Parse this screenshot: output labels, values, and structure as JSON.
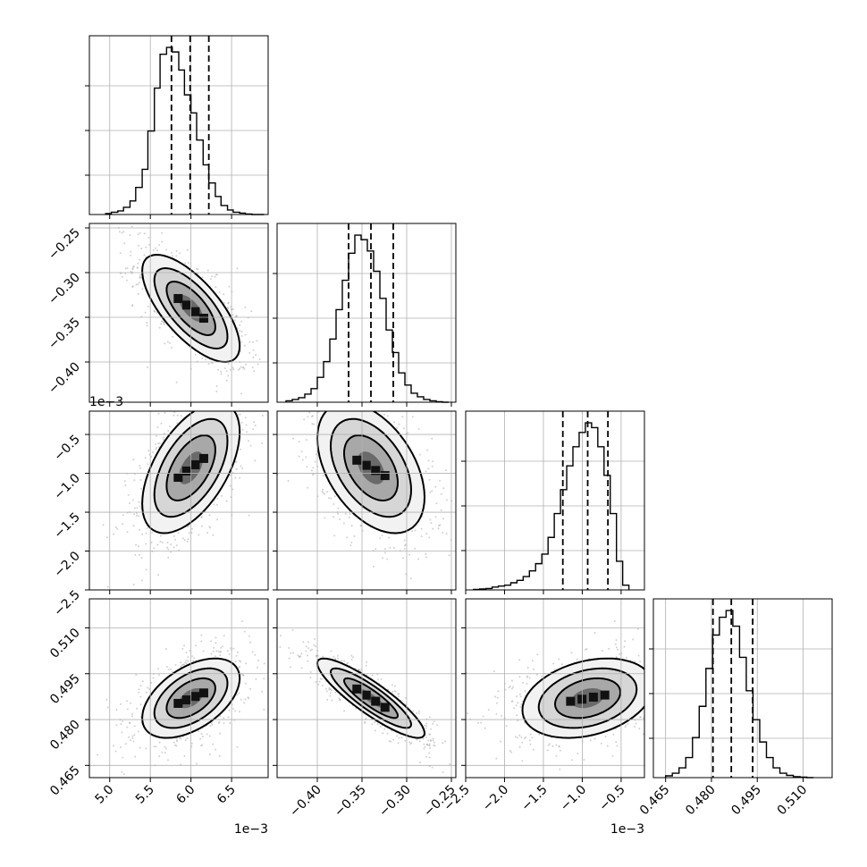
{
  "chart_data": {
    "type": "corner",
    "params": [
      {
        "index": 0,
        "lim": [
          4.75,
          6.95
        ],
        "scale": 0.001,
        "offset_label": "1e−3",
        "ticks": [
          5.0,
          5.5,
          6.0,
          6.5
        ],
        "tick_labels": [
          "5.0",
          "5.5",
          "6.0",
          "6.5"
        ],
        "quantiles": [
          5.76,
          5.99,
          6.22
        ]
      },
      {
        "index": 1,
        "lim": [
          -0.445,
          -0.245
        ],
        "scale": 1,
        "offset_label": "",
        "ticks": [
          -0.4,
          -0.35,
          -0.3,
          -0.25
        ],
        "tick_labels": [
          "−0.40",
          "−0.35",
          "−0.30",
          "−0.25"
        ],
        "quantiles": [
          -0.365,
          -0.34,
          -0.315
        ]
      },
      {
        "index": 2,
        "lim": [
          -2.5,
          -0.2
        ],
        "scale": 0.001,
        "offset_label": "1e−3",
        "ticks": [
          -2.5,
          -2.0,
          -1.5,
          -1.0,
          -0.5
        ],
        "tick_labels": [
          "−2.5",
          "−2.0",
          "−1.5",
          "−1.0",
          "−0.5"
        ],
        "quantiles": [
          -1.25,
          -0.93,
          -0.67
        ]
      },
      {
        "index": 3,
        "lim": [
          0.461,
          0.5195
        ],
        "scale": 1,
        "offset_label": "",
        "ticks": [
          0.465,
          0.48,
          0.495,
          0.51
        ],
        "tick_labels": [
          "0.465",
          "0.480",
          "0.495",
          "0.510"
        ],
        "quantiles": [
          0.4805,
          0.4865,
          0.4935
        ]
      }
    ],
    "histograms": [
      {
        "param": 0,
        "edges": [
          4.95,
          5.02,
          5.1,
          5.17,
          5.25,
          5.32,
          5.4,
          5.47,
          5.55,
          5.62,
          5.7,
          5.77,
          5.85,
          5.92,
          6.0,
          6.07,
          6.15,
          6.22,
          6.3,
          6.37,
          6.45,
          6.52,
          6.6,
          6.67,
          6.75,
          6.82,
          6.9
        ],
        "counts": [
          2,
          5,
          8,
          16,
          30,
          60,
          100,
          185,
          280,
          355,
          370,
          360,
          320,
          265,
          225,
          165,
          110,
          70,
          40,
          20,
          10,
          5,
          3,
          1,
          0,
          0
        ]
      },
      {
        "param": 1,
        "edges": [
          -0.435,
          -0.428,
          -0.421,
          -0.414,
          -0.407,
          -0.4,
          -0.393,
          -0.386,
          -0.379,
          -0.372,
          -0.365,
          -0.358,
          -0.351,
          -0.344,
          -0.337,
          -0.33,
          -0.323,
          -0.316,
          -0.309,
          -0.302,
          -0.295,
          -0.288,
          -0.281,
          -0.274,
          -0.267,
          -0.26,
          -0.253
        ],
        "counts": [
          3,
          6,
          10,
          18,
          30,
          55,
          90,
          140,
          205,
          270,
          330,
          370,
          360,
          335,
          290,
          230,
          160,
          110,
          65,
          38,
          20,
          12,
          6,
          3,
          1,
          0
        ]
      },
      {
        "param": 2,
        "edges": [
          -2.4,
          -2.32,
          -2.24,
          -2.16,
          -2.08,
          -2.0,
          -1.92,
          -1.84,
          -1.76,
          -1.68,
          -1.6,
          -1.52,
          -1.44,
          -1.36,
          -1.28,
          -1.2,
          -1.12,
          -1.04,
          -0.96,
          -0.88,
          -0.8,
          -0.72,
          -0.64,
          -0.56,
          -0.48,
          -0.4
        ],
        "counts": [
          1,
          2,
          3,
          6,
          8,
          10,
          15,
          20,
          28,
          40,
          55,
          75,
          110,
          160,
          210,
          260,
          300,
          330,
          350,
          340,
          300,
          240,
          160,
          60,
          10
        ]
      },
      {
        "param": 3,
        "edges": [
          0.465,
          0.4672,
          0.4694,
          0.4716,
          0.4738,
          0.476,
          0.4782,
          0.4804,
          0.4826,
          0.4848,
          0.487,
          0.4892,
          0.4914,
          0.4936,
          0.4958,
          0.498,
          0.5002,
          0.5024,
          0.5046,
          0.5068,
          0.509,
          0.5112,
          0.5134
        ],
        "counts": [
          4,
          10,
          22,
          45,
          90,
          160,
          245,
          320,
          360,
          375,
          340,
          270,
          195,
          130,
          80,
          45,
          22,
          10,
          5,
          2,
          1,
          0
        ]
      }
    ],
    "pairs": [
      {
        "x": 0,
        "y": 1,
        "center": [
          6.0,
          -0.34
        ],
        "sd": [
          0.3,
          0.03
        ],
        "rho": -0.7
      },
      {
        "x": 0,
        "y": 2,
        "center": [
          6.0,
          -0.93
        ],
        "sd": [
          0.3,
          0.42
        ],
        "rho": 0.55
      },
      {
        "x": 1,
        "y": 2,
        "center": [
          -0.34,
          -0.93
        ],
        "sd": [
          0.03,
          0.42
        ],
        "rho": -0.45
      },
      {
        "x": 0,
        "y": 3,
        "center": [
          6.0,
          0.487
        ],
        "sd": [
          0.3,
          0.0065
        ],
        "rho": 0.5
      },
      {
        "x": 1,
        "y": 3,
        "center": [
          -0.34,
          0.487
        ],
        "sd": [
          0.03,
          0.0065
        ],
        "rho": -0.88
      },
      {
        "x": 2,
        "y": 3,
        "center": [
          -0.93,
          0.487
        ],
        "sd": [
          0.42,
          0.0065
        ],
        "rho": 0.3
      }
    ],
    "contour_levels_sigma": [
      0.5,
      1.0,
      1.5,
      2.0
    ]
  }
}
